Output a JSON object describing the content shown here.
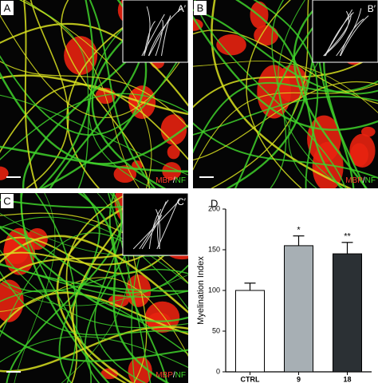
{
  "panels": [
    {
      "label": "A",
      "inset_label": "A′",
      "stain": {
        "red": "MBP",
        "sep": "/",
        "green": "NF"
      }
    },
    {
      "label": "B",
      "inset_label": "B′",
      "stain": {
        "red": "MBP",
        "sep": "/",
        "green": "NF"
      }
    },
    {
      "label": "C",
      "inset_label": "C′",
      "stain": {
        "red": "MBP",
        "sep": "/",
        "green": "NF"
      }
    }
  ],
  "chart_data": {
    "type": "bar",
    "panel_label": "D",
    "y_label": "Myelination Index",
    "categories": [
      "CTRL",
      "9",
      "18"
    ],
    "values": [
      100,
      155,
      145
    ],
    "errors": [
      9,
      12,
      14
    ],
    "colors": [
      "#ffffff",
      "#a7afb4",
      "#2b3034"
    ],
    "annotations": [
      null,
      "*",
      "**"
    ],
    "ylim": [
      0,
      200
    ],
    "yticks": [
      0,
      50,
      100,
      150,
      200
    ]
  }
}
